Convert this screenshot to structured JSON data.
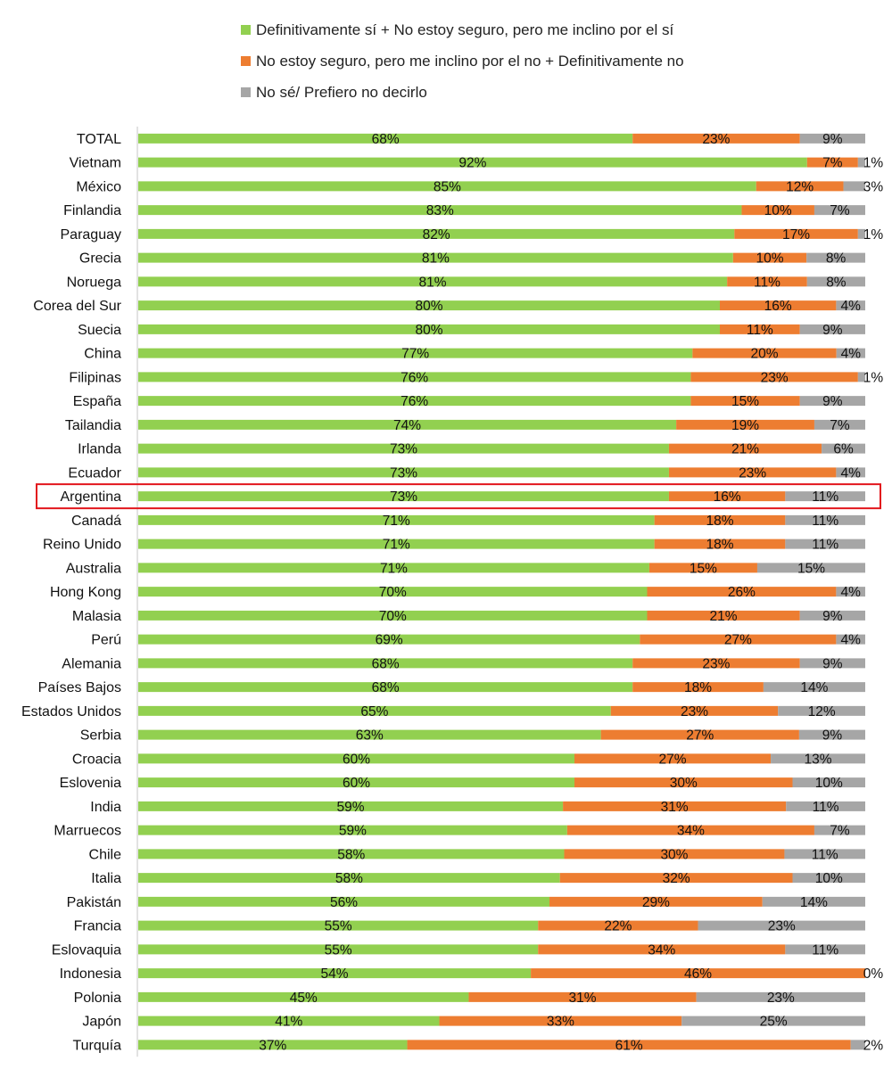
{
  "chart_data": {
    "type": "bar",
    "orientation": "horizontal",
    "stacked": "percent",
    "title": "",
    "xlabel": "",
    "ylabel": "",
    "xlim": [
      0,
      100
    ],
    "grid": false,
    "legend_position": "top",
    "highlighted_category": "Argentina",
    "highlight_color": "#e2161c",
    "categories": [
      "TOTAL",
      "Vietnam",
      "México",
      "Finlandia",
      "Paraguay",
      "Grecia",
      "Noruega",
      "Corea del Sur",
      "Suecia",
      "China",
      "Filipinas",
      "España",
      "Tailandia",
      "Irlanda",
      "Ecuador",
      "Argentina",
      "Canadá",
      "Reino Unido",
      "Australia",
      "Hong Kong",
      "Malasia",
      "Perú",
      "Alemania",
      "Países Bajos",
      "Estados Unidos",
      "Serbia",
      "Croacia",
      "Eslovenia",
      "India",
      "Marruecos",
      "Chile",
      "Italia",
      "Pakistán",
      "Francia",
      "Eslovaquia",
      "Indonesia",
      "Polonia",
      "Japón",
      "Turquía"
    ],
    "series": [
      {
        "name": "Definitivamente sí + No estoy seguro, pero me inclino por el sí",
        "color": "#92d050",
        "values": [
          68,
          92,
          85,
          83,
          82,
          81,
          81,
          80,
          80,
          77,
          76,
          76,
          74,
          73,
          73,
          73,
          71,
          71,
          71,
          70,
          70,
          69,
          68,
          68,
          65,
          63,
          60,
          60,
          59,
          59,
          58,
          58,
          56,
          55,
          55,
          54,
          45,
          41,
          37
        ]
      },
      {
        "name": "No estoy seguro, pero me inclino por el no + Definitivamente no",
        "color": "#ed7d31",
        "values": [
          23,
          7,
          12,
          10,
          17,
          10,
          11,
          16,
          11,
          20,
          23,
          15,
          19,
          21,
          23,
          16,
          18,
          18,
          15,
          26,
          21,
          27,
          23,
          18,
          23,
          27,
          27,
          30,
          31,
          34,
          30,
          32,
          29,
          22,
          34,
          46,
          31,
          33,
          61
        ]
      },
      {
        "name": "No sé/ Prefiero no decirlo",
        "color": "#a6a6a6",
        "values": [
          9,
          1,
          3,
          7,
          1,
          8,
          8,
          4,
          9,
          4,
          1,
          9,
          7,
          6,
          4,
          11,
          11,
          11,
          15,
          4,
          9,
          4,
          9,
          14,
          12,
          9,
          13,
          10,
          11,
          7,
          11,
          10,
          14,
          23,
          11,
          0,
          23,
          25,
          2
        ]
      }
    ],
    "value_suffix": "%"
  }
}
